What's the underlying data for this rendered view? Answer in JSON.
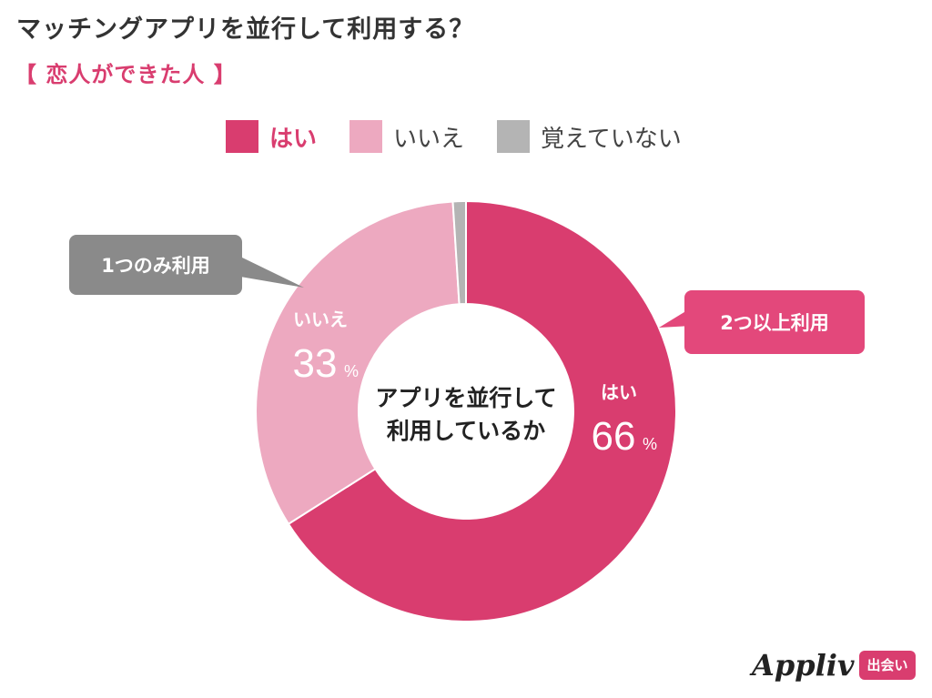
{
  "chart_data": {
    "type": "donut",
    "title": "マッチングアプリを並行して利用する？",
    "subtitle": "【 恋人ができた人 】",
    "center_label": [
      "アプリを並行して",
      "利用しているか"
    ],
    "legend_position": "top",
    "categories": [
      "はい",
      "いいえ",
      "覚えていない"
    ],
    "values": [
      66,
      33,
      1
    ],
    "colors": [
      "#d93d6f",
      "#eda9c0",
      "#b4b4b4"
    ],
    "slice_labels": [
      {
        "name": "はい",
        "value": "66",
        "unit": "%"
      },
      {
        "name": "いいえ",
        "value": "33",
        "unit": "%"
      },
      {
        "name": "",
        "value": "",
        "unit": ""
      }
    ],
    "annotations": [
      {
        "text": "2つ以上利用",
        "target": "はい",
        "color": "#e3487b"
      },
      {
        "text": "1つのみ利用",
        "target": "いいえ",
        "color": "#8a8a8a"
      }
    ]
  },
  "legend": [
    {
      "label": "はい",
      "color": "#d93d6f",
      "text_color": "#d93d6f",
      "bold": true
    },
    {
      "label": "いいえ",
      "color": "#eda9c0",
      "text_color": "#444444",
      "bold": false
    },
    {
      "label": "覚えていない",
      "color": "#b4b4b4",
      "text_color": "#444444",
      "bold": false
    }
  ],
  "logo": {
    "word": "Appliv",
    "badge": "出会い"
  }
}
